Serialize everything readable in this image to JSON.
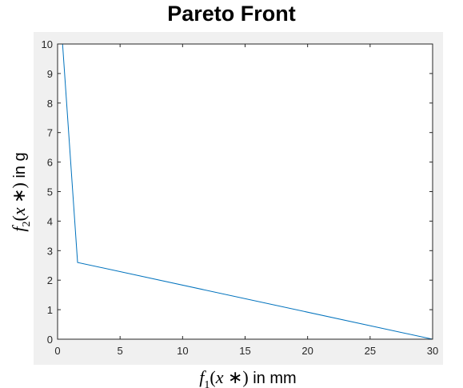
{
  "chart_data": {
    "type": "line",
    "title": "Pareto Front",
    "xlabel": "f1(x *) in mm",
    "ylabel": "f2(x *) in g",
    "xlim": [
      0,
      30
    ],
    "ylim": [
      0,
      10
    ],
    "xticks": [
      0,
      5,
      10,
      15,
      20,
      25,
      30
    ],
    "yticks": [
      0,
      1,
      2,
      3,
      4,
      5,
      6,
      7,
      8,
      9,
      10
    ],
    "grid": false,
    "series": [
      {
        "x": [
          0.4,
          1.6,
          30
        ],
        "y": [
          10,
          2.6,
          0
        ],
        "color": "#0072BD"
      }
    ]
  },
  "colors": {
    "figure_background": "#f0f0f0",
    "axes_background": "#ffffff",
    "axis_color": "#262626"
  }
}
